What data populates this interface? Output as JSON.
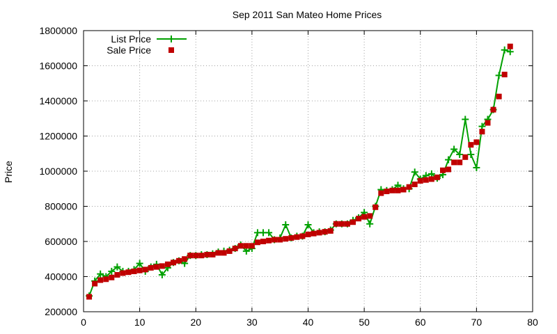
{
  "chart_data": {
    "type": "line",
    "title": "Sep 2011 San Mateo Home Prices",
    "xlabel": "",
    "ylabel": "Price",
    "xlim": [
      0,
      80
    ],
    "ylim": [
      200000,
      1800000
    ],
    "xticks": [
      0,
      10,
      20,
      30,
      40,
      50,
      60,
      70,
      80
    ],
    "yticks": [
      200000,
      400000,
      600000,
      800000,
      1000000,
      1200000,
      1400000,
      1600000,
      1800000
    ],
    "grid": true,
    "legend_position": "top-left",
    "colors": {
      "list": "#00a000",
      "sale": "#c00000"
    },
    "series": [
      {
        "name": "List Price",
        "style": "lines-with-plus-markers",
        "x": [
          1,
          2,
          3,
          4,
          5,
          6,
          7,
          8,
          9,
          10,
          11,
          12,
          13,
          14,
          15,
          16,
          17,
          18,
          19,
          20,
          21,
          22,
          23,
          24,
          25,
          26,
          27,
          28,
          29,
          30,
          31,
          32,
          33,
          34,
          35,
          36,
          37,
          38,
          39,
          40,
          41,
          42,
          43,
          44,
          45,
          46,
          47,
          48,
          49,
          50,
          51,
          52,
          53,
          54,
          55,
          56,
          57,
          58,
          59,
          60,
          61,
          62,
          63,
          64,
          65,
          66,
          67,
          68,
          69,
          70,
          71,
          72,
          73,
          74,
          75,
          76
        ],
        "y": [
          290000,
          375000,
          415000,
          400000,
          430000,
          455000,
          430000,
          430000,
          440000,
          475000,
          430000,
          455000,
          470000,
          410000,
          450000,
          480000,
          490000,
          475000,
          520000,
          520000,
          525000,
          525000,
          530000,
          540000,
          545000,
          550000,
          560000,
          580000,
          545000,
          560000,
          650000,
          650000,
          650000,
          610000,
          620000,
          695000,
          620000,
          630000,
          630000,
          695000,
          650000,
          655000,
          655000,
          665000,
          700000,
          700000,
          700000,
          720000,
          735000,
          765000,
          700000,
          800000,
          895000,
          890000,
          895000,
          920000,
          900000,
          900000,
          995000,
          955000,
          975000,
          985000,
          960000,
          980000,
          1065000,
          1125000,
          1095000,
          1295000,
          1095000,
          1020000,
          1255000,
          1295000,
          1350000,
          1545000,
          1690000,
          1680000
        ]
      },
      {
        "name": "Sale Price",
        "style": "square-points",
        "x": [
          1,
          2,
          3,
          4,
          5,
          6,
          7,
          8,
          9,
          10,
          11,
          12,
          13,
          14,
          15,
          16,
          17,
          18,
          19,
          20,
          21,
          22,
          23,
          24,
          25,
          26,
          27,
          28,
          29,
          30,
          31,
          32,
          33,
          34,
          35,
          36,
          37,
          38,
          39,
          40,
          41,
          42,
          43,
          44,
          45,
          46,
          47,
          48,
          49,
          50,
          51,
          52,
          53,
          54,
          55,
          56,
          57,
          58,
          59,
          60,
          61,
          62,
          63,
          64,
          65,
          66,
          67,
          68,
          69,
          70,
          71,
          72,
          73,
          74,
          75,
          76
        ],
        "y": [
          285000,
          360000,
          380000,
          385000,
          395000,
          410000,
          420000,
          425000,
          430000,
          435000,
          440000,
          450000,
          455000,
          460000,
          470000,
          480000,
          490000,
          500000,
          520000,
          520000,
          520000,
          525000,
          525000,
          535000,
          535000,
          545000,
          560000,
          575000,
          575000,
          575000,
          595000,
          600000,
          605000,
          610000,
          610000,
          615000,
          620000,
          625000,
          630000,
          640000,
          645000,
          650000,
          655000,
          660000,
          700000,
          700000,
          700000,
          710000,
          730000,
          740000,
          745000,
          795000,
          875000,
          885000,
          890000,
          890000,
          895000,
          910000,
          925000,
          945000,
          950000,
          955000,
          965000,
          1005000,
          1010000,
          1050000,
          1050000,
          1080000,
          1150000,
          1165000,
          1225000,
          1275000,
          1350000,
          1425000,
          1550000,
          1710000
        ]
      }
    ]
  }
}
